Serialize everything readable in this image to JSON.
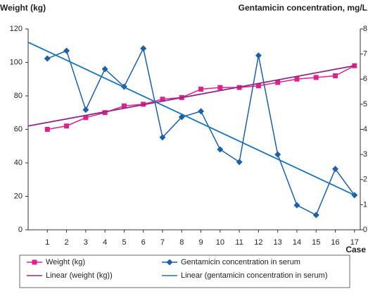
{
  "chart_data": {
    "type": "line",
    "y_label": "Weight (kg)",
    "y2_label": "Gentamicin concentration, mg/L",
    "x_label": "Case",
    "xlim": [
      0,
      17.3
    ],
    "xticks": [
      1,
      2,
      3,
      4,
      5,
      6,
      7,
      8,
      9,
      10,
      11,
      12,
      13,
      14,
      15,
      16,
      17
    ],
    "ylim": [
      0,
      120
    ],
    "yticks": [
      0,
      20,
      40,
      60,
      80,
      100,
      120
    ],
    "y2lim": [
      0,
      8
    ],
    "y2ticks": [
      0,
      1,
      2,
      3,
      4,
      5,
      6,
      7,
      8
    ],
    "series": [
      {
        "name": "Weight (kg)",
        "color": "#e0218a",
        "marker": "square",
        "x": [
          1,
          2,
          3,
          4,
          5,
          6,
          7,
          8,
          9,
          10,
          11,
          12,
          13,
          14,
          15,
          16,
          17
        ],
        "values": [
          60,
          62,
          67,
          70,
          74,
          75,
          78,
          79,
          84,
          85,
          85,
          86,
          88,
          90,
          91,
          92,
          98
        ]
      },
      {
        "name": "Gentamicin concentration in serum",
        "color": "#1f5fa8",
        "marker": "diamond",
        "axis": "y2",
        "x": [
          1,
          2,
          3,
          4,
          5,
          6,
          7,
          8,
          9,
          10,
          11,
          12,
          13,
          14,
          15,
          16,
          17
        ],
        "values": [
          6.82,
          7.13,
          4.78,
          6.4,
          5.7,
          7.22,
          3.68,
          4.49,
          4.72,
          3.2,
          2.7,
          6.94,
          3.0,
          0.98,
          0.59,
          2.42,
          1.38
        ]
      },
      {
        "name": "Linear (weight (kg))",
        "color": "#8b2a8a",
        "x": [
          0,
          17
        ],
        "values": [
          62,
          98
        ]
      },
      {
        "name": "Linear (gentamicin concentration in serum)",
        "color": "#1a74b8",
        "axis": "y2",
        "x": [
          0,
          17
        ],
        "values": [
          7.47,
          1.38
        ]
      }
    ]
  }
}
